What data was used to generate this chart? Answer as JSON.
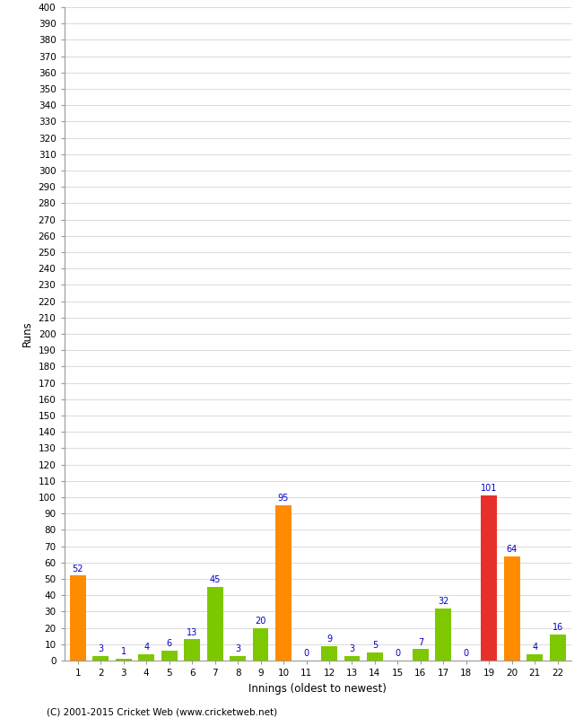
{
  "innings": [
    1,
    2,
    3,
    4,
    5,
    6,
    7,
    8,
    9,
    10,
    11,
    12,
    13,
    14,
    15,
    16,
    17,
    18,
    19,
    20,
    21,
    22
  ],
  "values": [
    52,
    3,
    1,
    4,
    6,
    13,
    45,
    3,
    20,
    95,
    0,
    9,
    3,
    5,
    0,
    7,
    32,
    0,
    101,
    64,
    4,
    16
  ],
  "colors": [
    "#ff8c00",
    "#7dc800",
    "#7dc800",
    "#7dc800",
    "#7dc800",
    "#7dc800",
    "#7dc800",
    "#7dc800",
    "#7dc800",
    "#ff8c00",
    "#7dc800",
    "#7dc800",
    "#7dc800",
    "#7dc800",
    "#7dc800",
    "#7dc800",
    "#7dc800",
    "#7dc800",
    "#e8302a",
    "#ff8c00",
    "#7dc800",
    "#7dc800"
  ],
  "xlabel": "Innings (oldest to newest)",
  "ylabel": "Runs",
  "ylim": [
    0,
    400
  ],
  "ytick_step": 10,
  "label_color": "#0000cc",
  "background_color": "#ffffff",
  "grid_color": "#cccccc",
  "copyright": "(C) 2001-2015 Cricket Web (www.cricketweb.net)"
}
